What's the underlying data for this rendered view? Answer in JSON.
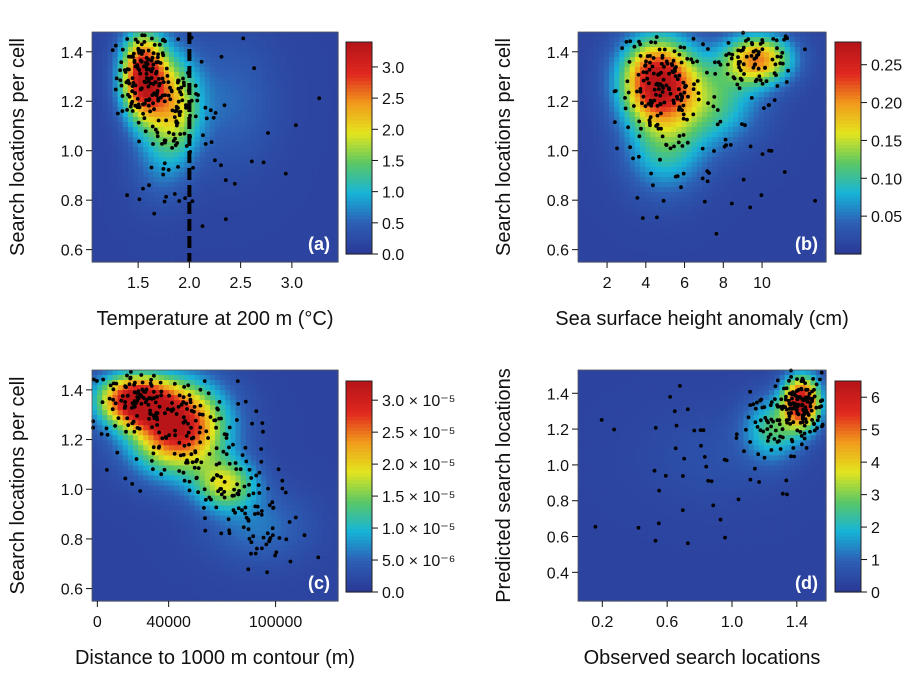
{
  "chart_data": [
    {
      "type": "heatmap",
      "panel_label": "(a)",
      "xlabel": "Temperature at 200 m (°C)",
      "ylabel": "Search locations per cell",
      "xlim": [
        1.05,
        3.45
      ],
      "ylim": [
        0.55,
        1.48
      ],
      "xticks": [
        "1.5",
        "2.0",
        "2.5",
        "3.0"
      ],
      "xtick_values": [
        1.5,
        2.0,
        2.5,
        3.0
      ],
      "yticks": [
        "0.6",
        "0.8",
        "1.0",
        "1.2",
        "1.4"
      ],
      "ytick_values": [
        0.6,
        0.8,
        1.0,
        1.2,
        1.4
      ],
      "colorbar": {
        "min": 0,
        "max": 3.4,
        "ticks": [
          "0.0",
          "0.5",
          "1.0",
          "1.5",
          "2.0",
          "2.5",
          "3.0"
        ],
        "tick_values": [
          0,
          0.5,
          1.0,
          1.5,
          2.0,
          2.5,
          3.0
        ]
      },
      "vline": 2.0,
      "density": [
        {
          "x": 1.55,
          "y": 1.3,
          "sx": 0.15,
          "sy": 0.12,
          "w": 1.0
        },
        {
          "x": 1.85,
          "y": 1.18,
          "sx": 0.18,
          "sy": 0.14,
          "w": 0.55
        },
        {
          "x": 1.7,
          "y": 0.95,
          "sx": 0.2,
          "sy": 0.12,
          "w": 0.12
        },
        {
          "x": 2.4,
          "y": 1.2,
          "sx": 0.3,
          "sy": 0.18,
          "w": 0.12
        }
      ],
      "points": {
        "n": 260,
        "clusters": [
          {
            "x": 1.55,
            "y": 1.3,
            "sx": 0.13,
            "sy": 0.1,
            "w": 0.55
          },
          {
            "x": 1.9,
            "y": 1.18,
            "sx": 0.15,
            "sy": 0.12,
            "w": 0.28
          },
          {
            "x": 1.8,
            "y": 0.92,
            "sx": 0.2,
            "sy": 0.14,
            "w": 0.1
          },
          {
            "x": 2.6,
            "y": 1.15,
            "sx": 0.4,
            "sy": 0.2,
            "w": 0.07
          }
        ]
      }
    },
    {
      "type": "heatmap",
      "panel_label": "(b)",
      "xlabel": "Sea surface height anomaly (cm)",
      "ylabel": "Search locations per cell",
      "xlim": [
        0.5,
        13.3
      ],
      "ylim": [
        0.55,
        1.48
      ],
      "xticks": [
        "2",
        "4",
        "6",
        "8",
        "10"
      ],
      "xtick_values": [
        2,
        4,
        6,
        8,
        10
      ],
      "yticks": [
        "0.6",
        "0.8",
        "1.0",
        "1.2",
        "1.4"
      ],
      "ytick_values": [
        0.6,
        0.8,
        1.0,
        1.2,
        1.4
      ],
      "colorbar": {
        "min": 0,
        "max": 0.28,
        "ticks": [
          "0.05",
          "0.10",
          "0.15",
          "0.20",
          "0.25"
        ],
        "tick_values": [
          0.05,
          0.1,
          0.15,
          0.2,
          0.25
        ]
      },
      "density": [
        {
          "x": 4.6,
          "y": 1.28,
          "sx": 1.3,
          "sy": 0.12,
          "w": 1.0
        },
        {
          "x": 9.8,
          "y": 1.37,
          "sx": 1.2,
          "sy": 0.07,
          "w": 0.7
        },
        {
          "x": 7.5,
          "y": 1.2,
          "sx": 1.6,
          "sy": 0.12,
          "w": 0.35
        },
        {
          "x": 5.0,
          "y": 1.0,
          "sx": 1.4,
          "sy": 0.12,
          "w": 0.3
        }
      ],
      "points": {
        "n": 300,
        "clusters": [
          {
            "x": 4.7,
            "y": 1.25,
            "sx": 1.1,
            "sy": 0.13,
            "w": 0.5
          },
          {
            "x": 9.8,
            "y": 1.37,
            "sx": 1.0,
            "sy": 0.06,
            "w": 0.25
          },
          {
            "x": 7.5,
            "y": 1.1,
            "sx": 2.2,
            "sy": 0.18,
            "w": 0.25
          }
        ]
      }
    },
    {
      "type": "heatmap",
      "panel_label": "(c)",
      "xlabel": "Distance to 1000 m contour (m)",
      "ylabel": "Search locations per cell",
      "xlim": [
        -3000,
        135000
      ],
      "ylim": [
        0.55,
        1.48
      ],
      "xticks": [
        "0",
        "40000",
        "100000"
      ],
      "xtick_values": [
        0,
        40000,
        100000
      ],
      "yticks": [
        "0.6",
        "0.8",
        "1.0",
        "1.2",
        "1.4"
      ],
      "ytick_values": [
        0.6,
        0.8,
        1.0,
        1.2,
        1.4
      ],
      "colorbar": {
        "min": 0,
        "max": 3.3e-05,
        "ticks": [
          "0.0",
          "5.0 × 10⁻⁶",
          "1.0 × 10⁻⁵",
          "1.5 × 10⁻⁵",
          "2.0 × 10⁻⁵",
          "2.5 × 10⁻⁵",
          "3.0 × 10⁻⁵"
        ],
        "tick_values": [
          0,
          5e-06,
          1e-05,
          1.5e-05,
          2e-05,
          2.5e-05,
          3e-05
        ]
      },
      "density": [
        {
          "x": 20000,
          "y": 1.36,
          "sx": 14000,
          "sy": 0.07,
          "w": 0.9
        },
        {
          "x": 45000,
          "y": 1.25,
          "sx": 18000,
          "sy": 0.12,
          "w": 1.0
        },
        {
          "x": 72000,
          "y": 1.02,
          "sx": 12000,
          "sy": 0.07,
          "w": 0.5
        },
        {
          "x": 90000,
          "y": 0.85,
          "sx": 20000,
          "sy": 0.1,
          "w": 0.15
        }
      ],
      "points": {
        "n": 330,
        "clusters": [
          {
            "x": 25000,
            "y": 1.35,
            "sx": 16000,
            "sy": 0.08,
            "w": 0.35
          },
          {
            "x": 50000,
            "y": 1.22,
            "sx": 18000,
            "sy": 0.12,
            "w": 0.35
          },
          {
            "x": 75000,
            "y": 1.0,
            "sx": 12000,
            "sy": 0.08,
            "w": 0.15
          },
          {
            "x": 92000,
            "y": 0.82,
            "sx": 14000,
            "sy": 0.1,
            "w": 0.15
          }
        ]
      }
    },
    {
      "type": "heatmap",
      "panel_label": "(d)",
      "xlabel": "Observed search locations",
      "ylabel": "Predicted search locations",
      "xlim": [
        0.05,
        1.58
      ],
      "ylim": [
        0.24,
        1.53
      ],
      "xticks": [
        "0.2",
        "0.6",
        "1.0",
        "1.4"
      ],
      "xtick_values": [
        0.2,
        0.6,
        1.0,
        1.4
      ],
      "yticks": [
        "0.4",
        "0.6",
        "0.8",
        "1.0",
        "1.2",
        "1.4"
      ],
      "ytick_values": [
        0.4,
        0.6,
        0.8,
        1.0,
        1.2,
        1.4
      ],
      "colorbar": {
        "min": 0,
        "max": 6.5,
        "ticks": [
          "0",
          "1",
          "2",
          "3",
          "4",
          "5",
          "6"
        ],
        "tick_values": [
          0,
          1,
          2,
          3,
          4,
          5,
          6
        ]
      },
      "density": [
        {
          "x": 1.43,
          "y": 1.35,
          "sx": 0.08,
          "sy": 0.1,
          "w": 1.0
        },
        {
          "x": 1.25,
          "y": 1.2,
          "sx": 0.12,
          "sy": 0.12,
          "w": 0.35
        },
        {
          "x": 0.9,
          "y": 1.05,
          "sx": 0.3,
          "sy": 0.18,
          "w": 0.05
        }
      ],
      "points": {
        "n": 230,
        "clusters": [
          {
            "x": 1.42,
            "y": 1.33,
            "sx": 0.08,
            "sy": 0.09,
            "w": 0.62
          },
          {
            "x": 1.25,
            "y": 1.2,
            "sx": 0.1,
            "sy": 0.1,
            "w": 0.18
          },
          {
            "x": 0.8,
            "y": 1.0,
            "sx": 0.3,
            "sy": 0.2,
            "w": 0.2
          }
        ]
      }
    }
  ],
  "colors": {
    "palette": [
      "#2b3a97",
      "#2d5fb5",
      "#17b4d8",
      "#5ac865",
      "#e3e51e",
      "#f19b1c",
      "#e0281f",
      "#b81519"
    ],
    "points": "#000000",
    "vline": "#000000",
    "panel_label": "#ffffff"
  }
}
